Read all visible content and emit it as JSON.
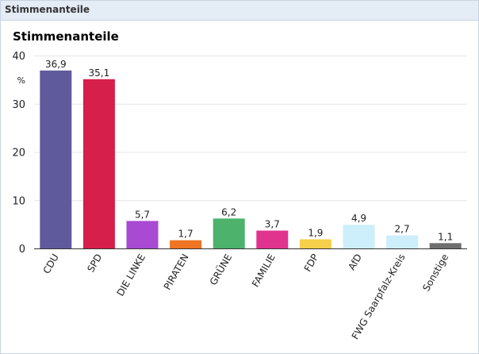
{
  "panel": {
    "header_title": "Stimmenanteile"
  },
  "chart_data": {
    "type": "bar",
    "title": "Stimmenanteile",
    "unit": "%",
    "ylim": [
      0,
      40
    ],
    "yticks": [
      "0",
      "10",
      "20",
      "30",
      "40"
    ],
    "grid": true,
    "categories": [
      "CDU",
      "SPD",
      "DIE LINKE",
      "PIRATEN",
      "GRÜNE",
      "FAMILIE",
      "FDP",
      "AfD",
      "FWG Saarpfalz-Kreis",
      "Sonstige"
    ],
    "values": [
      36.9,
      35.1,
      5.7,
      1.7,
      6.2,
      3.7,
      1.9,
      4.9,
      2.7,
      1.1
    ],
    "value_labels": [
      "36,9",
      "35,1",
      "5,7",
      "1,7",
      "6,2",
      "3,7",
      "1,9",
      "4,9",
      "2,7",
      "1,1"
    ],
    "colors": [
      "#5f5a9c",
      "#d61f4a",
      "#a84ad2",
      "#ef7423",
      "#4cb26c",
      "#e0348e",
      "#f6d04a",
      "#cdeefb",
      "#cdeefb",
      "#6f6f6f"
    ]
  }
}
